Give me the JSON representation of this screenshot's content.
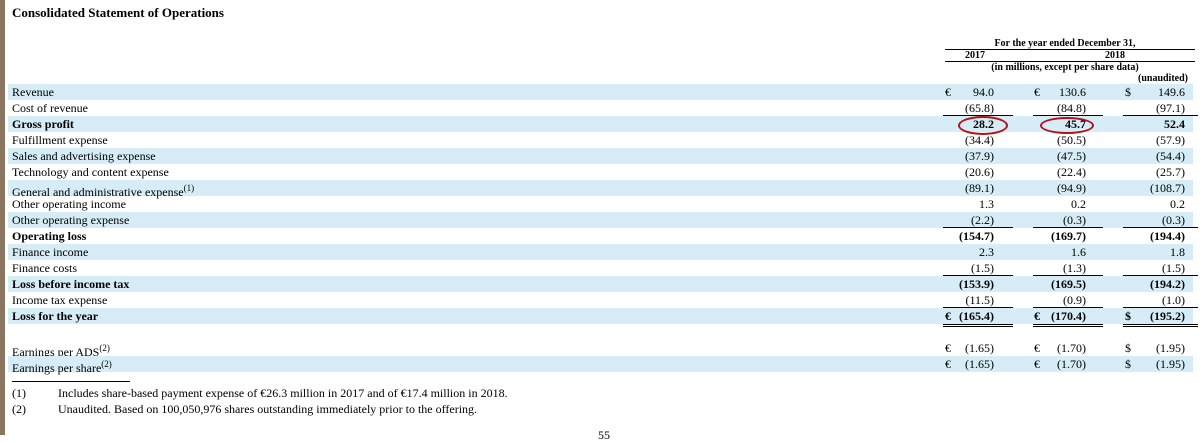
{
  "title": "Consolidated Statement of Operations",
  "header": {
    "period": "For the year ended December 31,",
    "years": [
      "2017",
      "2018"
    ],
    "unit_note": "(in millions, except per share data)",
    "unaudited": "(unaudited)"
  },
  "rows": [
    {
      "label": "Revenue",
      "c1cur": "€",
      "c1": "94.0",
      "c2cur": "€",
      "c2": "130.6",
      "c3cur": "$",
      "c3": "149.6",
      "bold": false,
      "shade": true
    },
    {
      "label": "Cost of revenue",
      "c1": "(65.8)",
      "c2": "(84.8)",
      "c3": "(97.1)",
      "bold": false,
      "shade": false,
      "under": true
    },
    {
      "label": "Gross profit",
      "c1": "28.2",
      "c2": "45.7",
      "c3": "52.4",
      "bold": true,
      "shade": true
    },
    {
      "label": "Fulfillment expense",
      "c1": "(34.4)",
      "c2": "(50.5)",
      "c3": "(57.9)",
      "bold": false,
      "shade": false
    },
    {
      "label": "Sales and advertising expense",
      "c1": "(37.9)",
      "c2": "(47.5)",
      "c3": "(54.4)",
      "bold": false,
      "shade": true
    },
    {
      "label": "Technology and content expense",
      "c1": "(20.6)",
      "c2": "(22.4)",
      "c3": "(25.7)",
      "bold": false,
      "shade": false
    },
    {
      "label": "General and administrative expense",
      "sup": "(1)",
      "c1": "(89.1)",
      "c2": "(94.9)",
      "c3": "(108.7)",
      "bold": false,
      "shade": true
    },
    {
      "label": "Other operating income",
      "c1": "1.3",
      "c2": "0.2",
      "c3": "0.2",
      "bold": false,
      "shade": false
    },
    {
      "label": "Other operating expense",
      "c1": "(2.2)",
      "c2": "(0.3)",
      "c3": "(0.3)",
      "bold": false,
      "shade": true,
      "under": true
    },
    {
      "label": "Operating loss",
      "c1": "(154.7)",
      "c2": "(169.7)",
      "c3": "(194.4)",
      "bold": true,
      "shade": false
    },
    {
      "label": "Finance income",
      "c1": "2.3",
      "c2": "1.6",
      "c3": "1.8",
      "bold": false,
      "shade": true
    },
    {
      "label": "Finance costs",
      "c1": "(1.5)",
      "c2": "(1.3)",
      "c3": "(1.5)",
      "bold": false,
      "shade": false,
      "under": true
    },
    {
      "label": "Loss before income tax",
      "c1": "(153.9)",
      "c2": "(169.5)",
      "c3": "(194.2)",
      "bold": true,
      "shade": true
    },
    {
      "label": "Income tax expense",
      "c1": "(11.5)",
      "c2": "(0.9)",
      "c3": "(1.0)",
      "bold": false,
      "shade": false,
      "under": true
    },
    {
      "label": "Loss for the year",
      "c1cur": "€",
      "c1": "(165.4)",
      "c2cur": "€",
      "c2": "(170.4)",
      "c3cur": "$",
      "c3": "(195.2)",
      "bold": true,
      "shade": true,
      "dbl": true
    }
  ],
  "eps_rows": [
    {
      "label": "Earnings per ADS",
      "sup": "(2)",
      "c1cur": "€",
      "c1": "(1.65)",
      "c2cur": "€",
      "c2": "(1.70)",
      "c3cur": "$",
      "c3": "(1.95)",
      "bold": false,
      "shade": false
    },
    {
      "label": "Earnings per share",
      "sup": "(2)",
      "c1cur": "€",
      "c1": "(1.65)",
      "c2cur": "€",
      "c2": "(1.70)",
      "c3cur": "$",
      "c3": "(1.95)",
      "bold": false,
      "shade": true
    }
  ],
  "footnotes": [
    {
      "num": "(1)",
      "text": "Includes share-based payment expense of €26.3 million in 2017 and of €17.4 million in 2018."
    },
    {
      "num": "(2)",
      "text": "Unaudited. Based on 100,050,976 shares outstanding immediately prior to the offering."
    }
  ],
  "page_mark": "55",
  "colors": {
    "row_shade": "#d6ecf7",
    "annotation_ring": "#b3121a"
  }
}
